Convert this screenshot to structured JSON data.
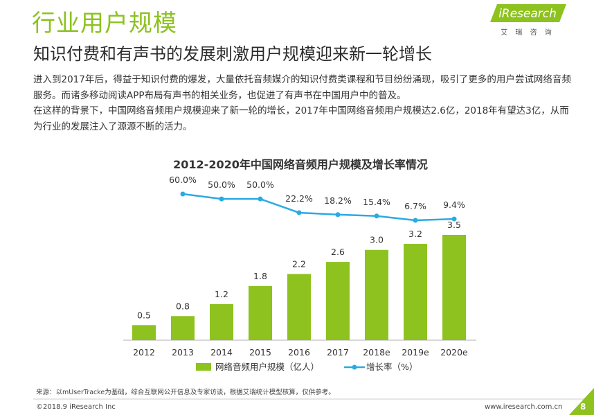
{
  "title": "行业用户规模",
  "subtitle": "知识付费和有声书的发展刺激用户规模迎来新一轮增长",
  "paragraphs": [
    "进入到2017年后，得益于知识付费的爆发，大量依托音频媒介的知识付费类课程和节目纷纷涌现，吸引了更多的用户尝试网络音频服务。而诸多移动阅读APP布局有声书的相关业务，也促进了有声书在中国用户中的普及。",
    "在这样的背景下，中国网络音频用户规模迎来了新一轮的增长，2017年中国网络音频用户规模达2.6亿，2018年有望达3亿，从而为行业的发展注入了源源不断的活力。"
  ],
  "logo": {
    "brand": "iResearch",
    "cn": "艾 瑞 咨 询"
  },
  "source": "来源：以mUserTracke为基础，综合互联网公开信息及专家访谈，根据艾瑞统计模型核算，仅供参考。",
  "footer": "©2018.9 iResearch Inc",
  "url": "www.iresearch.com.cn",
  "page": "8",
  "chart_data": {
    "type": "bar",
    "title": "2012-2020年中国网络音频用户规模及增长率情况",
    "categories": [
      "2012",
      "2013",
      "2014",
      "2015",
      "2016",
      "2017",
      "2018e",
      "2019e",
      "2020e"
    ],
    "series": [
      {
        "name": "网络音频用户规模（亿人）",
        "type": "bar",
        "color": "#8dc21f",
        "values": [
          0.5,
          0.8,
          1.2,
          1.8,
          2.2,
          2.6,
          3.0,
          3.2,
          3.5
        ],
        "value_labels": [
          "0.5",
          "0.8",
          "1.2",
          "1.8",
          "2.2",
          "2.6",
          "3.0",
          "3.2",
          "3.5"
        ]
      },
      {
        "name": "增长率（%）",
        "type": "line",
        "axis": "y2",
        "color": "#29abe2",
        "values": [
          null,
          60.0,
          50.0,
          50.0,
          22.2,
          18.2,
          15.4,
          6.7,
          9.4
        ],
        "value_labels": [
          null,
          "60.0%",
          "50.0%",
          "50.0%",
          "22.2%",
          "18.2%",
          "15.4%",
          "6.7%",
          "9.4%"
        ]
      }
    ],
    "legend": "bottom"
  }
}
